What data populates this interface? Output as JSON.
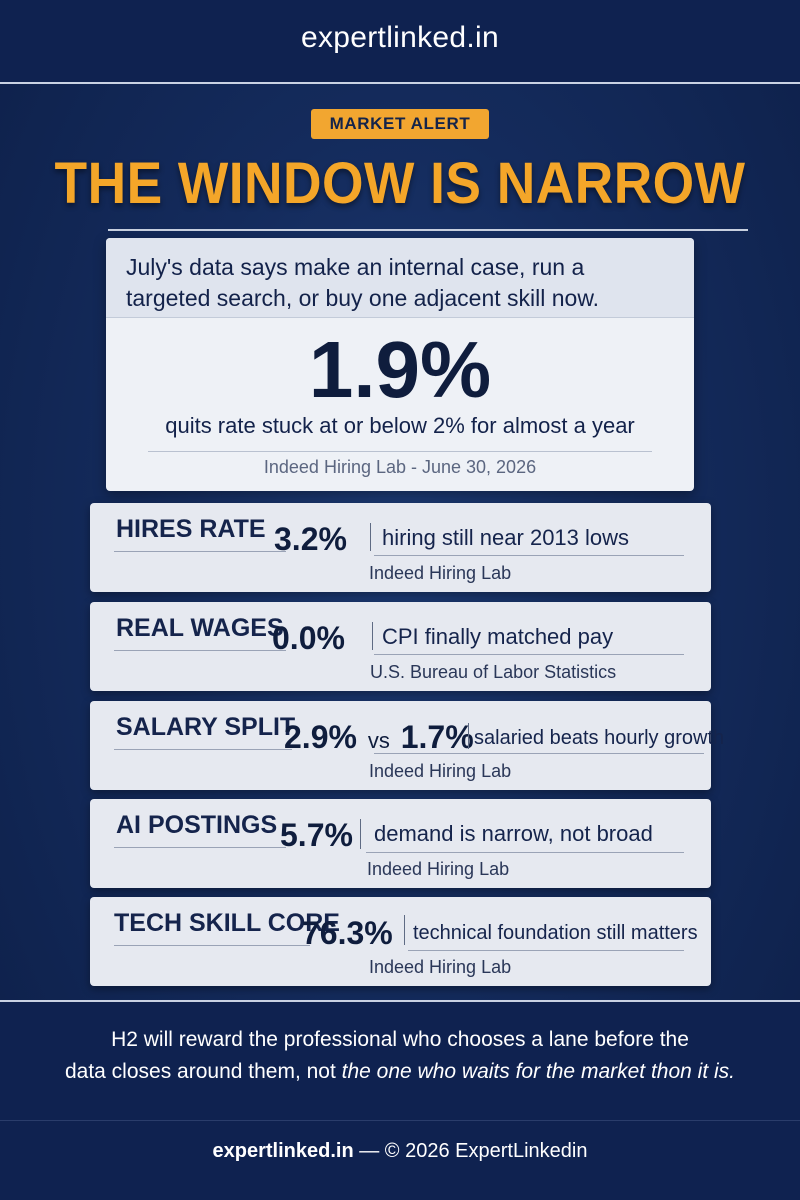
{
  "header": {
    "brand": "expertlinked.in"
  },
  "alert": {
    "badge": "MARKET ALERT",
    "headline": "THE WINDOW IS NARROW"
  },
  "hero": {
    "intro_line1": "July's data says make an internal case, run a",
    "intro_line2": "targeted search, or buy one adjacent skill now.",
    "stat": "1.9%",
    "description": "quits rate stuck at or below 2% for almost a year",
    "source": "Indeed Hiring Lab - June 30, 2026"
  },
  "metrics": [
    {
      "label": "HIRES RATE",
      "value": "3.2%",
      "description": "hiring still near 2013 lows",
      "source": "Indeed Hiring Lab"
    },
    {
      "label": "REAL WAGES",
      "value": "0.0%",
      "description": "CPI finally matched pay",
      "source": "U.S. Bureau of Labor Statistics"
    },
    {
      "label": "SALARY SPLIT",
      "value_a": "2.9%",
      "vs": "vs",
      "value_b": "1.7%",
      "description": "salaried beats hourly growth",
      "source": "Indeed Hiring Lab"
    },
    {
      "label": "AI POSTINGS",
      "value": "5.7%",
      "description": "demand is narrow, not broad",
      "source": "Indeed Hiring Lab"
    },
    {
      "label": "TECH SKILL CORE",
      "value": "76.3%",
      "description": "technical foundation still matters",
      "source": "Indeed Hiring Lab"
    }
  ],
  "closing": {
    "line1": "H2 will reward the professional who chooses a lane before the",
    "line2_plain": "data closes around them, not ",
    "line2_italic": "the one who waits for the market thon it is."
  },
  "footer": {
    "brand": "expertlinked.in",
    "copyright": " — © 2026 ExpertLinkedin"
  },
  "colors": {
    "background": "#142b5c",
    "accent": "#f4a629",
    "card": "#e6e9f0"
  }
}
